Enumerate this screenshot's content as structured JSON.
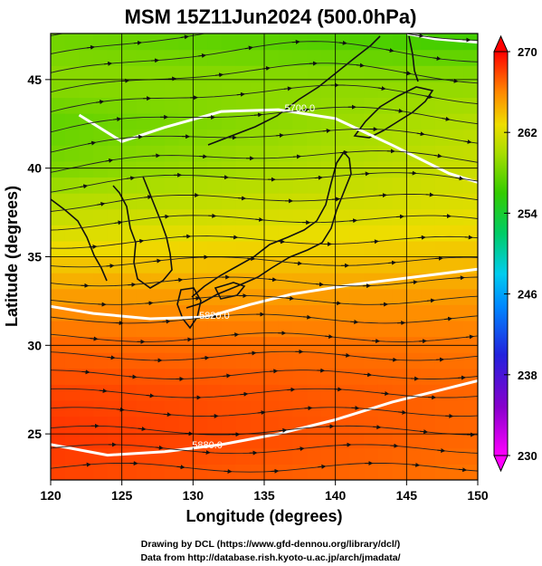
{
  "chart_data": {
    "type": "heatmap",
    "title": "MSM 15Z11Jun2024 (500.0hPa)",
    "xlabel": "Longitude (degrees)",
    "ylabel": "Latitude  (degrees)",
    "xlim": [
      120,
      150
    ],
    "ylim": [
      22.4,
      47.6
    ],
    "x_ticks": [
      120,
      125,
      130,
      135,
      140,
      145,
      150
    ],
    "x_tick_labels": [
      "120",
      "125",
      "130",
      "135",
      "140",
      "145",
      "150"
    ],
    "y_ticks": [
      25,
      30,
      35,
      40,
      45
    ],
    "y_tick_labels": [
      "25",
      "30",
      "35",
      "40",
      "45"
    ],
    "grid": true,
    "colorbar": {
      "min": 230,
      "max": 270,
      "tick_values": [
        230,
        238,
        246,
        254,
        262,
        270
      ],
      "tick_labels": [
        "230",
        "238",
        "246",
        "254",
        "262",
        "270"
      ]
    },
    "temperature_field_K": {
      "lat": [
        47.6,
        45,
        42.5,
        40,
        37.5,
        35,
        32.5,
        30,
        27.5,
        25,
        22.4
      ],
      "lon_west": [
        258,
        259,
        257.5,
        258.5,
        261,
        263.5,
        265.5,
        267,
        268,
        268.5,
        268
      ],
      "lon_east": [
        256,
        259,
        260.5,
        261.5,
        262.5,
        264,
        265.5,
        266.5,
        267,
        267,
        266.5
      ]
    },
    "contours_geopotential_m": [
      {
        "label": "5700.0",
        "points": [
          [
            122,
            43.0
          ],
          [
            125,
            41.5
          ],
          [
            128,
            42.3
          ],
          [
            132,
            43.2
          ],
          [
            136,
            43.3
          ],
          [
            140,
            42.8
          ],
          [
            144,
            41.3
          ],
          [
            148,
            39.7
          ],
          [
            150,
            39.2
          ]
        ]
      },
      {
        "label": "5820.0",
        "points": [
          [
            120,
            32.2
          ],
          [
            123,
            31.8
          ],
          [
            127,
            31.5
          ],
          [
            131,
            31.6
          ],
          [
            134,
            32.3
          ],
          [
            137,
            32.9
          ],
          [
            141,
            33.4
          ],
          [
            145,
            33.8
          ],
          [
            150,
            34.3
          ]
        ]
      },
      {
        "label": "5880.0",
        "points": [
          [
            120,
            24.4
          ],
          [
            124,
            23.8
          ],
          [
            128,
            24.0
          ],
          [
            132,
            24.4
          ],
          [
            136,
            25.0
          ],
          [
            140,
            25.8
          ],
          [
            144,
            26.8
          ],
          [
            148,
            27.6
          ],
          [
            150,
            28.0
          ]
        ]
      },
      {
        "label": "",
        "points": [
          [
            145,
            47.6
          ],
          [
            147,
            47.3
          ],
          [
            150,
            47.1
          ]
        ]
      }
    ],
    "contour_labels_shown": [
      {
        "text": "5700.0",
        "lon": 137.5,
        "lat": 43.4
      },
      {
        "text": "5820.0",
        "lon": 131.5,
        "lat": 31.7
      },
      {
        "text": "5880.0",
        "lon": 131.0,
        "lat": 24.4
      }
    ],
    "wind_streamlines": "predominantly westerly (west to east), curving north-eastward over northern Japan"
  },
  "credits": {
    "line1": "Drawing by DCL (https://www.gfd-dennou.org/library/dcl/)",
    "line2": "Data from http://database.rish.kyoto-u.ac.jp/arch/jmadata/"
  }
}
